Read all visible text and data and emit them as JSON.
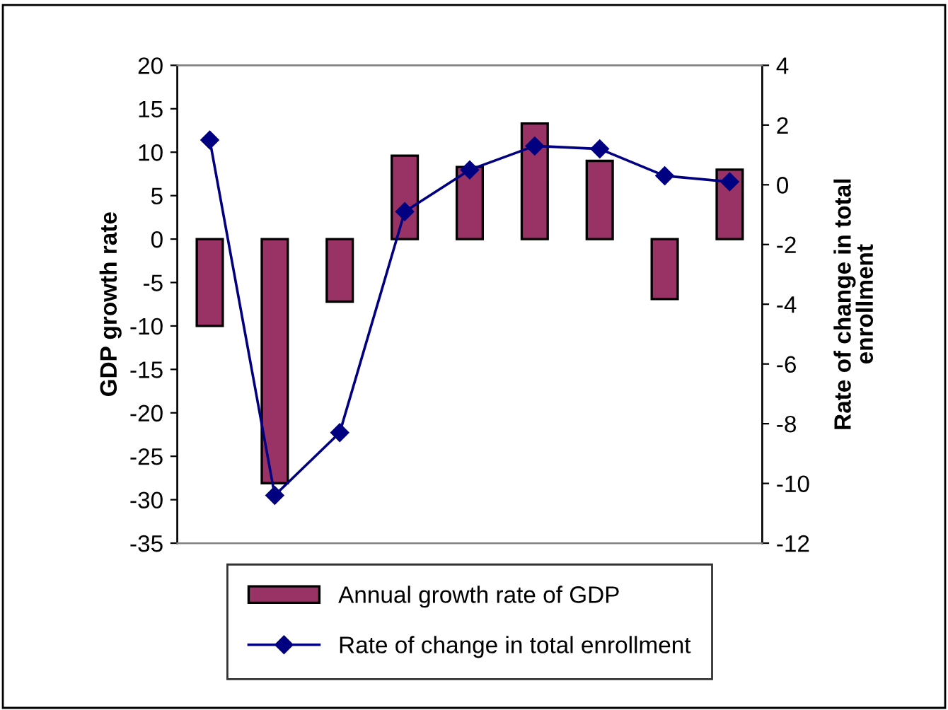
{
  "chart_data": {
    "type": "bar",
    "categories": [
      null,
      null,
      null,
      null,
      null,
      null,
      null,
      null,
      null
    ],
    "ylabel": "GDP growth rate",
    "y2label": "Rate of change in total enrollment",
    "ylim": [
      -35,
      20
    ],
    "yticks": [
      -35,
      -30,
      -25,
      -20,
      -15,
      -10,
      -5,
      0,
      5,
      10,
      15,
      20
    ],
    "y2lim": [
      -12,
      4
    ],
    "y2ticks": [
      -12,
      -10,
      -8,
      -6,
      -4,
      -2,
      0,
      2,
      4
    ],
    "series": [
      {
        "name": "Annual growth rate of GDP",
        "color": "#993366",
        "values": [
          -10,
          -28.1,
          -7.2,
          9.6,
          8.3,
          13.3,
          9.0,
          -6.9,
          8.0
        ]
      },
      {
        "name": "Rate of change in total enrollment",
        "type": "line",
        "axis": "y2",
        "color": "#000080",
        "marker": "diamond",
        "values": [
          1.5,
          -10.4,
          -8.3,
          -0.9,
          0.5,
          1.3,
          1.2,
          0.3,
          0.1
        ]
      }
    ],
    "legend": "bottom",
    "grid": false
  }
}
